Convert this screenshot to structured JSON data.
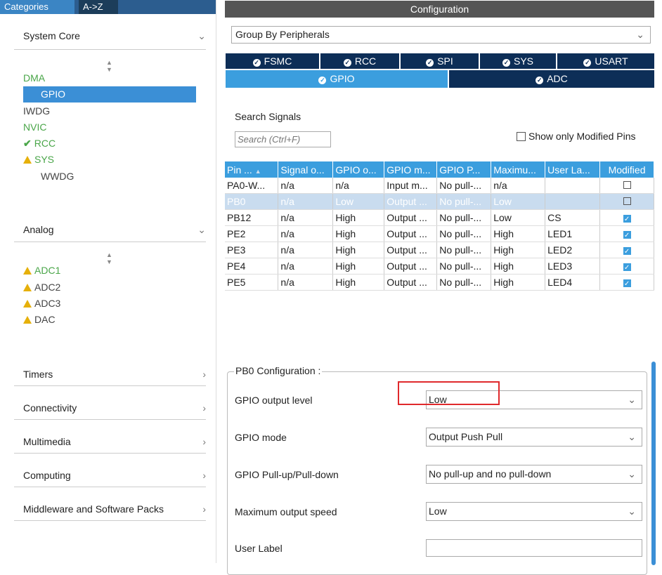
{
  "left_panel": {
    "tabs": [
      "Categories",
      "A->Z"
    ],
    "system_core": {
      "title": "System Core",
      "items": [
        {
          "label": "DMA",
          "state": "green"
        },
        {
          "label": "GPIO",
          "state": "selected"
        },
        {
          "label": "IWDG",
          "state": "gray"
        },
        {
          "label": "NVIC",
          "state": "green"
        },
        {
          "label": "RCC",
          "state": "check"
        },
        {
          "label": "SYS",
          "state": "warning"
        },
        {
          "label": "WWDG",
          "state": "gray"
        }
      ]
    },
    "analog": {
      "title": "Analog",
      "items": [
        {
          "label": "ADC1",
          "state": "warning-green"
        },
        {
          "label": "ADC2",
          "state": "warning"
        },
        {
          "label": "ADC3",
          "state": "warning"
        },
        {
          "label": "DAC",
          "state": "warning"
        }
      ]
    },
    "collapsed_sections": [
      "Timers",
      "Connectivity",
      "Multimedia",
      "Computing",
      "Middleware and Software Packs"
    ]
  },
  "config": {
    "title": "Configuration",
    "group_by": "Group By Peripherals",
    "tabs_row1": [
      "FSMC",
      "RCC",
      "SPI",
      "SYS",
      "USART"
    ],
    "tabs_row2": [
      "GPIO",
      "ADC"
    ],
    "active_tab": "GPIO",
    "search_label": "Search Signals",
    "search_placeholder": "Search (Ctrl+F)",
    "show_modified_label": "Show only Modified Pins",
    "table_headers": [
      "Pin ...",
      "Signal o...",
      "GPIO o...",
      "GPIO m...",
      "GPIO P...",
      "Maximu...",
      "User La...",
      "Modified"
    ],
    "rows": [
      {
        "pin": "PA0-W...",
        "signal": "n/a",
        "out": "n/a",
        "mode": "Input m...",
        "pull": "No pull-...",
        "speed": "n/a",
        "label": "",
        "modified": false
      },
      {
        "pin": "PB0",
        "signal": "n/a",
        "out": "Low",
        "mode": "Output ...",
        "pull": "No pull-...",
        "speed": "Low",
        "label": "",
        "modified": false
      },
      {
        "pin": "PB12",
        "signal": "n/a",
        "out": "High",
        "mode": "Output ...",
        "pull": "No pull-...",
        "speed": "Low",
        "label": "CS",
        "modified": true
      },
      {
        "pin": "PE2",
        "signal": "n/a",
        "out": "High",
        "mode": "Output ...",
        "pull": "No pull-...",
        "speed": "High",
        "label": "LED1",
        "modified": true
      },
      {
        "pin": "PE3",
        "signal": "n/a",
        "out": "High",
        "mode": "Output ...",
        "pull": "No pull-...",
        "speed": "High",
        "label": "LED2",
        "modified": true
      },
      {
        "pin": "PE4",
        "signal": "n/a",
        "out": "High",
        "mode": "Output ...",
        "pull": "No pull-...",
        "speed": "High",
        "label": "LED3",
        "modified": true
      },
      {
        "pin": "PE5",
        "signal": "n/a",
        "out": "High",
        "mode": "Output ...",
        "pull": "No pull-...",
        "speed": "High",
        "label": "LED4",
        "modified": true
      }
    ],
    "pin_config": {
      "title": "PB0 Configuration :",
      "fields": [
        {
          "label": "GPIO output level",
          "value": "Low"
        },
        {
          "label": "GPIO mode",
          "value": "Output Push Pull"
        },
        {
          "label": "GPIO Pull-up/Pull-down",
          "value": "No pull-up and no pull-down"
        },
        {
          "label": "Maximum output speed",
          "value": "Low"
        },
        {
          "label": "User Label",
          "value": ""
        }
      ]
    }
  },
  "colors": {
    "accent": "#3b9ede",
    "tab_dark": "#0d2e57",
    "ok": "#4aa649",
    "warn": "#e6b00a",
    "highlight": "#e0292c"
  }
}
